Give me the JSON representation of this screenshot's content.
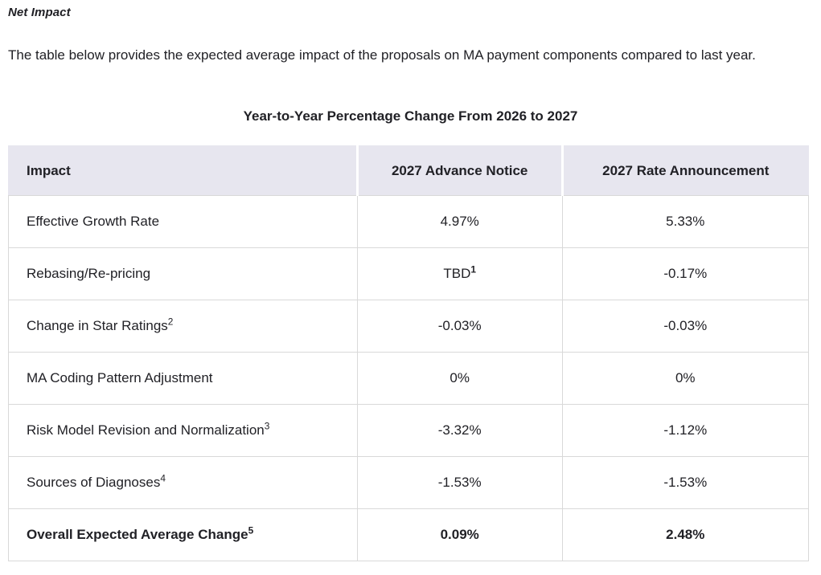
{
  "colors": {
    "header_bg": "#e7e6ef",
    "border": "#d9d9d9",
    "text": "#212126",
    "page_bg": "#ffffff"
  },
  "page": {
    "heading": "Net Impact",
    "intro": "The table below provides the expected average impact of the proposals on MA payment components compared to last year.",
    "table_title": "Year-to-Year Percentage Change From 2026 to 2027"
  },
  "table": {
    "columns": [
      "Impact",
      "2027 Advance Notice",
      "2027 Rate Announcement"
    ],
    "rows": [
      {
        "label": "Effective Growth Rate",
        "label_sup": "",
        "advance_notice": "4.97%",
        "advance_notice_sup": "",
        "rate_announcement": "5.33%",
        "bold": false
      },
      {
        "label": "Rebasing/Re-pricing",
        "label_sup": "",
        "advance_notice": "TBD",
        "advance_notice_sup": "1",
        "rate_announcement": "-0.17%",
        "bold": false
      },
      {
        "label": "Change in Star Ratings",
        "label_sup": "2",
        "advance_notice": "-0.03%",
        "advance_notice_sup": "",
        "rate_announcement": "-0.03%",
        "bold": false
      },
      {
        "label": "MA Coding Pattern Adjustment",
        "label_sup": "",
        "advance_notice": "0%",
        "advance_notice_sup": "",
        "rate_announcement": "0%",
        "bold": false
      },
      {
        "label": "Risk Model Revision and Normalization",
        "label_sup": "3",
        "advance_notice": "-3.32%",
        "advance_notice_sup": "",
        "rate_announcement": "-1.12%",
        "bold": false
      },
      {
        "label": "Sources of Diagnoses",
        "label_sup": "4",
        "advance_notice": "-1.53%",
        "advance_notice_sup": "",
        "rate_announcement": "-1.53%",
        "bold": false
      },
      {
        "label": "Overall Expected Average Change",
        "label_sup": "5",
        "advance_notice": "0.09%",
        "advance_notice_sup": "",
        "rate_announcement": "2.48%",
        "bold": true
      }
    ]
  }
}
